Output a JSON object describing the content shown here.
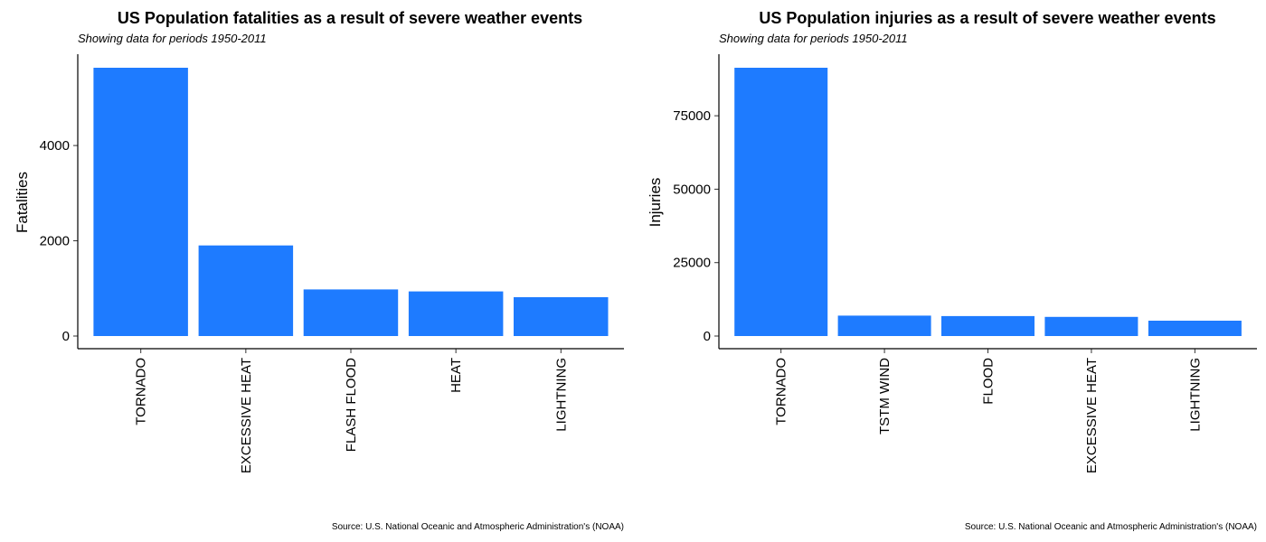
{
  "colors": {
    "bar": "#1E7BFF",
    "axis": "#000000",
    "background": "#FFFFFF"
  },
  "chart_data": [
    {
      "type": "bar",
      "title": "US Population fatalities as a result of severe weather events",
      "subtitle": "Showing data for periods 1950-2011",
      "caption": "Source: U.S. National Oceanic and Atmospheric Administration's (NOAA)",
      "xlabel": "",
      "ylabel": "Fatalities",
      "categories": [
        "TORNADO",
        "EXCESSIVE HEAT",
        "FLASH FLOOD",
        "HEAT",
        "LIGHTNING"
      ],
      "values": [
        5633,
        1903,
        978,
        937,
        816
      ],
      "yticks": [
        0,
        2000,
        4000
      ],
      "ylim": [
        0,
        5633
      ],
      "grid": false,
      "legend": "none"
    },
    {
      "type": "bar",
      "title": "US Population injuries as a result of severe weather events",
      "subtitle": "Showing data for periods 1950-2011",
      "caption": "Source: U.S. National Oceanic and Atmospheric Administration's (NOAA)",
      "xlabel": "",
      "ylabel": "Injuries",
      "categories": [
        "TORNADO",
        "TSTM WIND",
        "FLOOD",
        "EXCESSIVE HEAT",
        "LIGHTNING"
      ],
      "values": [
        91346,
        6957,
        6789,
        6525,
        5230
      ],
      "yticks": [
        0,
        25000,
        50000,
        75000
      ],
      "ylim": [
        0,
        91346
      ],
      "grid": false,
      "legend": "none"
    }
  ]
}
